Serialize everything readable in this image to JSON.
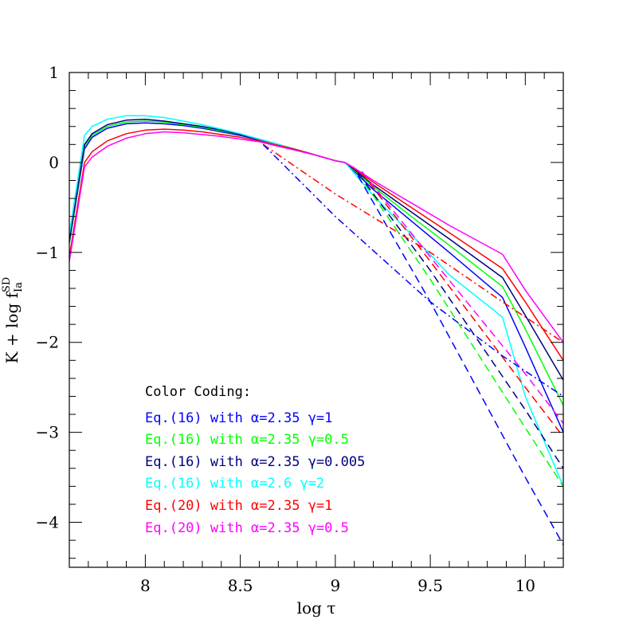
{
  "chart_data": {
    "type": "line",
    "xlabel": "log τ",
    "ylabel": "K + log f",
    "ylabel_sup": "SD",
    "ylabel_sub": "Ia",
    "xlim": [
      7.6,
      10.2
    ],
    "ylim": [
      -4.5,
      1
    ],
    "x_ticks": [
      8,
      8.5,
      9,
      9.5,
      10
    ],
    "x_tick_labels": [
      "8",
      "8.5",
      "9",
      "9.5",
      "10"
    ],
    "y_ticks": [
      1,
      0,
      -1,
      -2,
      -3,
      -4
    ],
    "y_tick_labels": [
      "1",
      "0",
      "−1",
      "−2",
      "−3",
      "−4"
    ],
    "legend": {
      "title": "Color Coding:",
      "entries": [
        {
          "text": "Eq.(16) with α=2.35 γ=1",
          "color": "#0000ff"
        },
        {
          "text": "Eq.(16) with α=2.35 γ=0.5",
          "color": "#00ff00"
        },
        {
          "text": "Eq.(16) with α=2.35 γ=0.005",
          "color": "#000080"
        },
        {
          "text": "Eq.(16) with α=2.6  γ=2",
          "color": "#00ffff"
        },
        {
          "text": "Eq.(20) with α=2.35 γ=1",
          "color": "#ff0000"
        },
        {
          "text": "Eq.(20) with α=2.35 γ=0.5",
          "color": "#ff00ff"
        }
      ]
    },
    "series": [
      {
        "color": "#0000ff",
        "dash": "solid",
        "x": [
          7.6,
          7.68,
          7.72,
          7.8,
          7.9,
          8.0,
          8.1,
          8.2,
          8.3,
          8.4,
          8.5,
          8.6,
          8.7,
          8.8,
          8.9,
          9.0,
          9.05,
          9.1,
          9.2,
          9.4,
          9.6,
          9.88,
          10.0,
          10.2
        ],
        "y": [
          -0.9,
          0.15,
          0.28,
          0.38,
          0.43,
          0.44,
          0.43,
          0.41,
          0.38,
          0.34,
          0.3,
          0.25,
          0.2,
          0.14,
          0.08,
          0.02,
          0.0,
          -0.1,
          -0.3,
          -0.65,
          -1.0,
          -1.5,
          -2.05,
          -3.0
        ]
      },
      {
        "color": "#00ff00",
        "dash": "solid",
        "x": [
          7.6,
          7.68,
          7.72,
          7.8,
          7.9,
          8.0,
          8.1,
          8.2,
          8.3,
          8.4,
          8.5,
          8.6,
          8.7,
          8.8,
          8.9,
          9.0,
          9.05,
          9.1,
          9.2,
          9.4,
          9.6,
          9.88,
          10.0,
          10.2
        ],
        "y": [
          -0.9,
          0.18,
          0.3,
          0.4,
          0.45,
          0.46,
          0.45,
          0.42,
          0.39,
          0.35,
          0.31,
          0.26,
          0.2,
          0.14,
          0.08,
          0.02,
          0.0,
          -0.09,
          -0.27,
          -0.6,
          -0.92,
          -1.38,
          -1.85,
          -2.7
        ]
      },
      {
        "color": "#000080",
        "dash": "solid",
        "x": [
          7.6,
          7.68,
          7.72,
          7.8,
          7.9,
          8.0,
          8.1,
          8.2,
          8.3,
          8.4,
          8.5,
          8.6,
          8.7,
          8.8,
          8.9,
          9.0,
          9.05,
          9.1,
          9.2,
          9.4,
          9.6,
          9.88,
          10.0,
          10.2
        ],
        "y": [
          -0.88,
          0.2,
          0.32,
          0.42,
          0.47,
          0.48,
          0.46,
          0.43,
          0.4,
          0.36,
          0.31,
          0.26,
          0.2,
          0.14,
          0.08,
          0.02,
          0.0,
          -0.08,
          -0.25,
          -0.55,
          -0.85,
          -1.28,
          -1.7,
          -2.42
        ]
      },
      {
        "color": "#00ffff",
        "dash": "solid",
        "x": [
          7.6,
          7.68,
          7.72,
          7.8,
          7.9,
          8.0,
          8.1,
          8.2,
          8.3,
          8.4,
          8.5,
          8.6,
          8.7,
          8.8,
          8.9,
          9.0,
          9.05,
          9.1,
          9.2,
          9.4,
          9.6,
          9.88,
          10.0,
          10.2
        ],
        "y": [
          -0.8,
          0.3,
          0.4,
          0.48,
          0.52,
          0.52,
          0.5,
          0.46,
          0.42,
          0.37,
          0.32,
          0.26,
          0.2,
          0.14,
          0.08,
          0.02,
          0.0,
          -0.12,
          -0.37,
          -0.8,
          -1.25,
          -1.72,
          -2.6,
          -3.6
        ]
      },
      {
        "color": "#ff0000",
        "dash": "solid",
        "x": [
          7.6,
          7.68,
          7.72,
          7.8,
          7.9,
          8.0,
          8.1,
          8.2,
          8.3,
          8.4,
          8.5,
          8.6,
          8.7,
          8.8,
          8.9,
          9.0,
          9.05,
          9.1,
          9.2,
          9.4,
          9.6,
          9.88,
          10.0,
          10.2
        ],
        "y": [
          -1.05,
          0.0,
          0.12,
          0.24,
          0.32,
          0.36,
          0.37,
          0.36,
          0.34,
          0.31,
          0.28,
          0.24,
          0.19,
          0.14,
          0.08,
          0.02,
          0.0,
          -0.07,
          -0.22,
          -0.5,
          -0.78,
          -1.18,
          -1.55,
          -2.2
        ]
      },
      {
        "color": "#ff00ff",
        "dash": "solid",
        "x": [
          7.6,
          7.68,
          7.72,
          7.8,
          7.9,
          8.0,
          8.1,
          8.2,
          8.3,
          8.4,
          8.5,
          8.6,
          8.7,
          8.8,
          8.9,
          9.0,
          9.05,
          9.1,
          9.2,
          9.4,
          9.6,
          9.88,
          10.0,
          10.2
        ],
        "y": [
          -1.1,
          -0.05,
          0.06,
          0.18,
          0.27,
          0.32,
          0.34,
          0.33,
          0.31,
          0.29,
          0.26,
          0.23,
          0.18,
          0.13,
          0.08,
          0.02,
          0.0,
          -0.06,
          -0.2,
          -0.45,
          -0.7,
          -1.02,
          -1.42,
          -2.0
        ]
      },
      {
        "color": "#0000ff",
        "dash": "dashed",
        "x": [
          9.12,
          9.5,
          10.0,
          10.2
        ],
        "y": [
          -0.15,
          -1.55,
          -3.5,
          -4.25
        ]
      },
      {
        "color": "#00ff00",
        "dash": "dashed",
        "x": [
          9.12,
          9.5,
          10.0,
          10.2
        ],
        "y": [
          -0.12,
          -1.3,
          -2.95,
          -3.6
        ]
      },
      {
        "color": "#000080",
        "dash": "dashed",
        "x": [
          9.12,
          9.5,
          10.0,
          10.2
        ],
        "y": [
          -0.12,
          -1.2,
          -2.75,
          -3.4
        ]
      },
      {
        "color": "#ff0000",
        "dash": "dashed",
        "x": [
          9.14,
          9.5,
          10.0,
          10.2
        ],
        "y": [
          -0.12,
          -1.1,
          -2.5,
          -3.05
        ]
      },
      {
        "color": "#ff00ff",
        "dash": "dashed",
        "x": [
          9.14,
          9.5,
          10.0,
          10.2
        ],
        "y": [
          -0.1,
          -1.05,
          -2.35,
          -2.9
        ]
      },
      {
        "color": "#ff0000",
        "dash": "dashdot",
        "x": [
          8.62,
          9.0,
          9.5,
          9.88,
          10.2
        ],
        "y": [
          0.2,
          -0.35,
          -1.0,
          -1.55,
          -2.0
        ]
      },
      {
        "color": "#0000ff",
        "dash": "dashdot",
        "x": [
          8.62,
          9.0,
          9.5,
          9.88,
          10.2
        ],
        "y": [
          0.2,
          -0.6,
          -1.55,
          -2.15,
          -2.6
        ]
      }
    ]
  }
}
